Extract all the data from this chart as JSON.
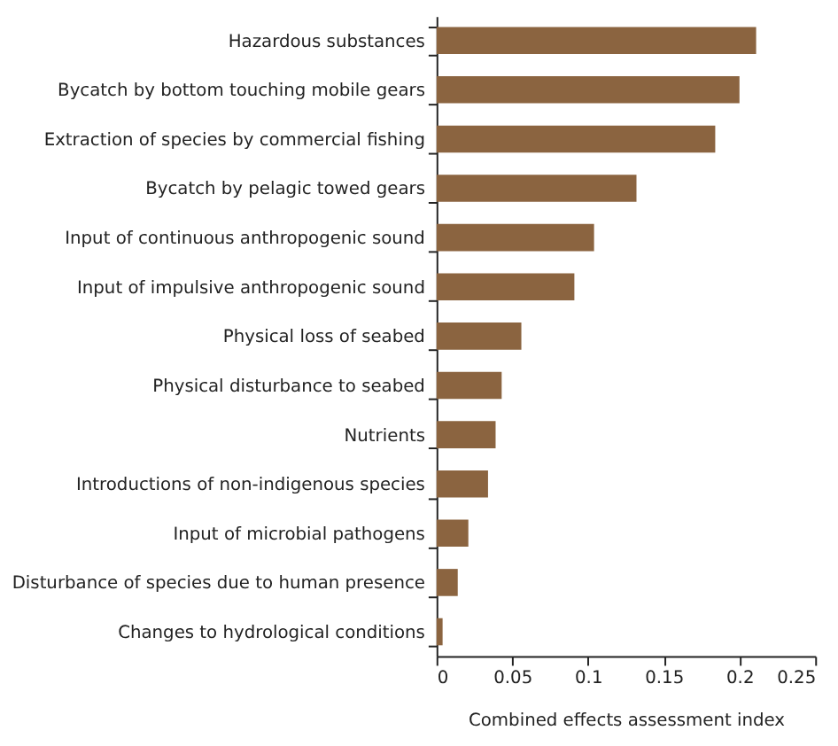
{
  "chart_data": {
    "type": "bar",
    "orientation": "horizontal",
    "xlabel": "Combined effects assessment index",
    "categories": [
      "Hazardous substances",
      "Bycatch by bottom touching mobile gears",
      "Extraction of species by commercial fishing",
      "Bycatch by pelagic towed gears",
      "Input of continuous anthropogenic sound",
      "Input of impulsive anthropogenic sound",
      "Physical loss of seabed",
      "Physical disturbance to seabed",
      "Nutrients",
      "Introductions of non-indigenous species",
      "Input of microbial pathogens",
      "Disturbance of species due to human presence",
      "Changes to hydrological conditions"
    ],
    "values": [
      0.211,
      0.2,
      0.184,
      0.132,
      0.104,
      0.091,
      0.056,
      0.043,
      0.039,
      0.034,
      0.021,
      0.014,
      0.004
    ],
    "color": "#8b6440",
    "xlim": [
      0,
      0.25
    ],
    "xticks": [
      0,
      0.05,
      0.1,
      0.15,
      0.2,
      0.25
    ],
    "grid": false
  }
}
